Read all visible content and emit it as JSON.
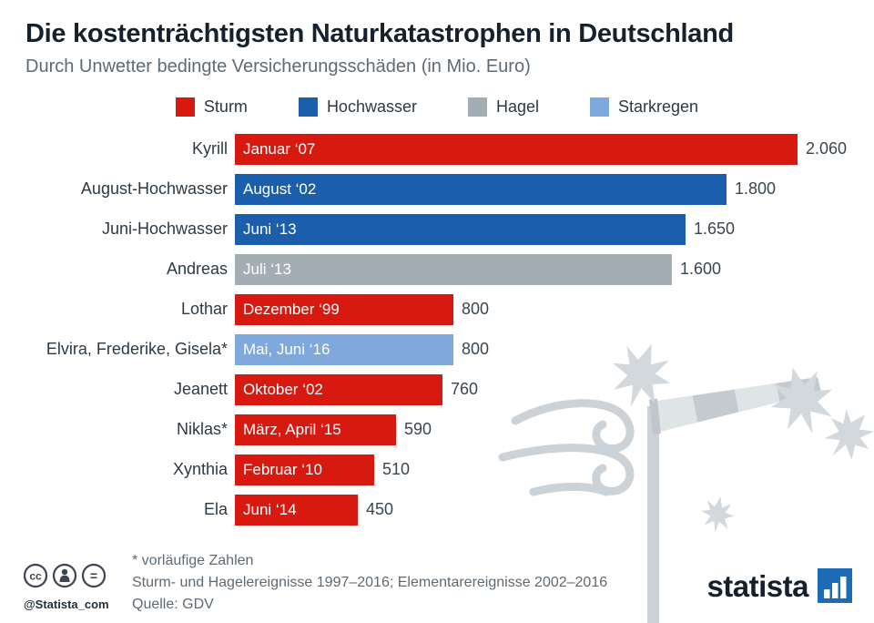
{
  "header": {
    "title": "Die kostenträchtigsten Naturkatastrophen in Deutschland",
    "subtitle": "Durch Unwetter bedingte Versicherungsschäden (in Mio. Euro)"
  },
  "colors": {
    "Sturm": "#d7190f",
    "Hochwasser": "#1b5eab",
    "Hagel": "#a3adb4",
    "Starkregen": "#7fa8dc",
    "brand_blue": "#1d6bb5",
    "deco_gray": "#ccd3d8"
  },
  "legend": [
    {
      "label": "Sturm",
      "type": "Sturm"
    },
    {
      "label": "Hochwasser",
      "type": "Hochwasser"
    },
    {
      "label": "Hagel",
      "type": "Hagel"
    },
    {
      "label": "Starkregen",
      "type": "Starkregen"
    }
  ],
  "chart_data": {
    "type": "bar",
    "orientation": "horizontal",
    "title": "Die kostenträchtigsten Naturkatastrophen in Deutschland",
    "subtitle": "Durch Unwetter bedingte Versicherungsschäden (in Mio. Euro)",
    "unit": "Mio. Euro",
    "xlim": [
      0,
      2060
    ],
    "legend_position": "top-center",
    "bars": [
      {
        "name": "Kyrill",
        "date": "Januar ‘07",
        "value": 2060,
        "value_label": "2.060",
        "type": "Sturm"
      },
      {
        "name": "August-Hochwasser",
        "date": "August ‘02",
        "value": 1800,
        "value_label": "1.800",
        "type": "Hochwasser"
      },
      {
        "name": "Juni-Hochwasser",
        "date": "Juni ‘13",
        "value": 1650,
        "value_label": "1.650",
        "type": "Hochwasser"
      },
      {
        "name": "Andreas",
        "date": "Juli ‘13",
        "value": 1600,
        "value_label": "1.600",
        "type": "Hagel"
      },
      {
        "name": "Lothar",
        "date": "Dezember ‘99",
        "value": 800,
        "value_label": "800",
        "type": "Sturm"
      },
      {
        "name": "Elvira, Frederike, Gisela*",
        "date": "Mai, Juni ‘16",
        "value": 800,
        "value_label": "800",
        "type": "Starkregen"
      },
      {
        "name": "Jeanett",
        "date": "Oktober ‘02",
        "value": 760,
        "value_label": "760",
        "type": "Sturm"
      },
      {
        "name": "Niklas*",
        "date": "März, April ‘15",
        "value": 590,
        "value_label": "590",
        "type": "Sturm"
      },
      {
        "name": "Xynthia",
        "date": "Februar ‘10",
        "value": 510,
        "value_label": "510",
        "type": "Sturm"
      },
      {
        "name": "Ela",
        "date": "Juni ‘14",
        "value": 450,
        "value_label": "450",
        "type": "Sturm"
      }
    ]
  },
  "footnotes": {
    "line1": "* vorläufige Zahlen",
    "line2": "Sturm- und Hagelereignisse 1997–2016; Elementarereignisse 2002–2016",
    "line3": "Quelle: GDV"
  },
  "footer": {
    "handle": "@Statista_com",
    "brand": "statista",
    "cc_glyph": "cc",
    "nd_glyph": "="
  }
}
